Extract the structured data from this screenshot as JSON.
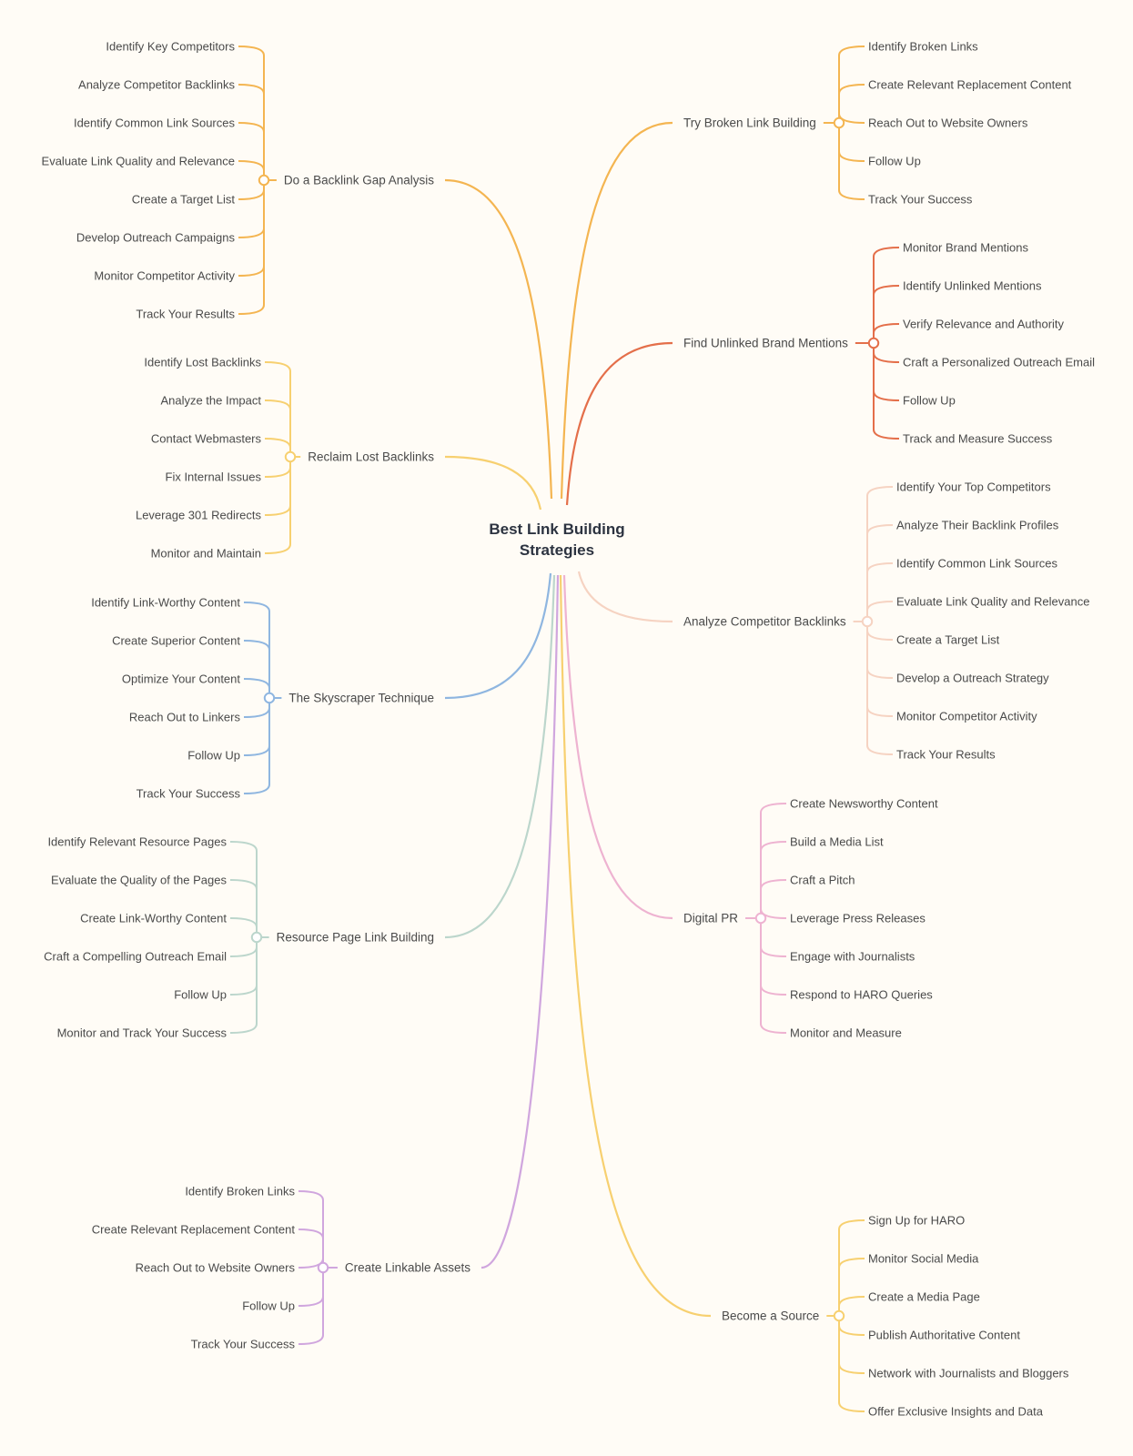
{
  "root": {
    "title_line1": "Best Link Building",
    "title_line2": "Strategies"
  },
  "branches": [
    {
      "key": "backlink-gap",
      "label": "Do a Backlink Gap Analysis",
      "color": "#f4b551",
      "items": [
        "Identify Key Competitors",
        "Analyze Competitor Backlinks",
        "Identify Common Link Sources",
        "Evaluate Link Quality and Relevance",
        "Create a Target List",
        "Develop Outreach Campaigns",
        "Monitor Competitor Activity",
        "Track Your Results"
      ]
    },
    {
      "key": "reclaim-lost",
      "label": "Reclaim Lost Backlinks",
      "color": "#f7d070",
      "items": [
        "Identify Lost Backlinks",
        "Analyze the Impact",
        "Contact Webmasters",
        "Fix Internal Issues",
        "Leverage 301 Redirects",
        "Monitor and Maintain"
      ]
    },
    {
      "key": "skyscraper",
      "label": "The Skyscraper Technique",
      "color": "#8fb6e0",
      "items": [
        "Identify Link-Worthy Content",
        "Create Superior Content",
        "Optimize Your Content",
        "Reach Out to Linkers",
        "Follow Up",
        "Track Your Success"
      ]
    },
    {
      "key": "resource-page",
      "label": "Resource Page Link Building",
      "color": "#bcd6cc",
      "items": [
        "Identify Relevant Resource Pages",
        "Evaluate the Quality of the Pages",
        "Create Link-Worthy Content",
        "Craft a Compelling Outreach Email",
        "Follow Up",
        "Monitor and Track Your Success"
      ]
    },
    {
      "key": "linkable-assets",
      "label": "Create Linkable Assets",
      "color": "#d0a6de",
      "items": [
        "Identify Broken Links",
        "Create Relevant Replacement Content",
        "Reach Out to Website Owners",
        "Follow Up",
        "Track Your Success"
      ]
    },
    {
      "key": "broken-link",
      "label": "Try Broken Link Building",
      "color": "#f4b551",
      "items": [
        "Identify Broken Links",
        "Create Relevant Replacement Content",
        "Reach Out to Website Owners",
        "Follow Up",
        "Track Your Success"
      ]
    },
    {
      "key": "unlinked-mentions",
      "label": "Find Unlinked Brand Mentions",
      "color": "#e46f4a",
      "items": [
        "Monitor Brand Mentions",
        "Identify Unlinked Mentions",
        "Verify Relevance and Authority",
        "Craft a Personalized Outreach Email",
        "Follow Up",
        "Track and Measure Success"
      ]
    },
    {
      "key": "competitor-backlinks",
      "label": "Analyze Competitor Backlinks",
      "color": "#f6d3c2",
      "items": [
        "Identify Your Top Competitors",
        "Analyze Their Backlink Profiles",
        "Identify Common Link Sources",
        "Evaluate Link Quality and Relevance",
        "Create a Target List",
        "Develop a Outreach Strategy",
        "Monitor Competitor Activity",
        "Track Your Results"
      ]
    },
    {
      "key": "digital-pr",
      "label": "Digital PR",
      "color": "#eeb3d1",
      "items": [
        "Create Newsworthy Content",
        "Build a Media List",
        "Craft a Pitch",
        "Leverage Press Releases",
        "Engage with Journalists",
        "Respond to HARO Queries",
        "Monitor and Measure"
      ]
    },
    {
      "key": "become-source",
      "label": "Become a Source",
      "color": "#f7d070",
      "items": [
        "Sign Up for HARO",
        "Monitor Social Media",
        "Create a Media Page",
        "Publish Authoritative Content",
        "Network with Journalists and Bloggers",
        "Offer Exclusive Insights and Data"
      ]
    }
  ]
}
